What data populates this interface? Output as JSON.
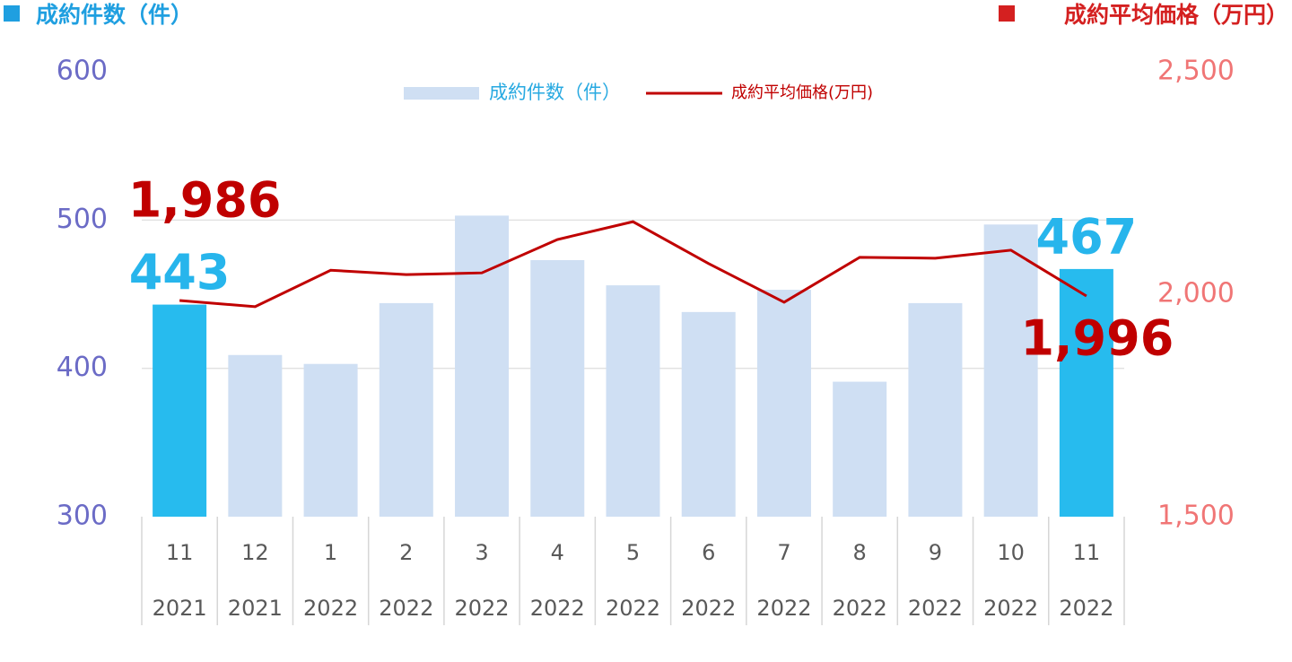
{
  "chart_data": {
    "type": "bar_line",
    "y_label": "成約件数（件）",
    "y2_label": "成約平均価格（万円）",
    "categories": [
      "11",
      "12",
      "1",
      "2",
      "3",
      "4",
      "5",
      "6",
      "7",
      "8",
      "9",
      "10",
      "11"
    ],
    "category_years": [
      "2021",
      "2021",
      "2022",
      "2022",
      "2022",
      "2022",
      "2022",
      "2022",
      "2022",
      "2022",
      "2022",
      "2022",
      "2022"
    ],
    "series": [
      {
        "name": "成約件数（件）",
        "type": "bar",
        "color": "#cfdff3",
        "legend_text_color": "#27a9e1",
        "colors": [
          "#27bbee",
          "#cfdff3",
          "#cfdff3",
          "#cfdff3",
          "#cfdff3",
          "#cfdff3",
          "#cfdff3",
          "#cfdff3",
          "#cfdff3",
          "#cfdff3",
          "#cfdff3",
          "#cfdff3",
          "#27bbee"
        ],
        "values": [
          443,
          409,
          403,
          444,
          503,
          473,
          456,
          438,
          453,
          391,
          444,
          497,
          467
        ],
        "value_labels": [
          "443",
          null,
          null,
          null,
          null,
          null,
          null,
          null,
          null,
          null,
          null,
          null,
          "467"
        ]
      },
      {
        "name": "成約平均価格(万円)",
        "type": "line",
        "axis": "y2",
        "color": "#c00000",
        "values": [
          1986,
          1972,
          2054,
          2044,
          2048,
          2123,
          2163,
          2069,
          1982,
          2083,
          2081,
          2099,
          1996
        ],
        "value_labels": [
          "1,986",
          null,
          null,
          null,
          null,
          null,
          null,
          null,
          null,
          null,
          null,
          null,
          "1,996"
        ]
      }
    ],
    "ylim": [
      300,
      600
    ],
    "yticks": [
      300,
      400,
      500,
      600
    ],
    "y2lim": [
      1500,
      2500
    ],
    "y2ticks": [
      {
        "value": 1500,
        "label": "1,500"
      },
      {
        "value": 2000,
        "label": "2,000"
      },
      {
        "value": 2500,
        "label": "2,500"
      }
    ],
    "grid": true
  }
}
